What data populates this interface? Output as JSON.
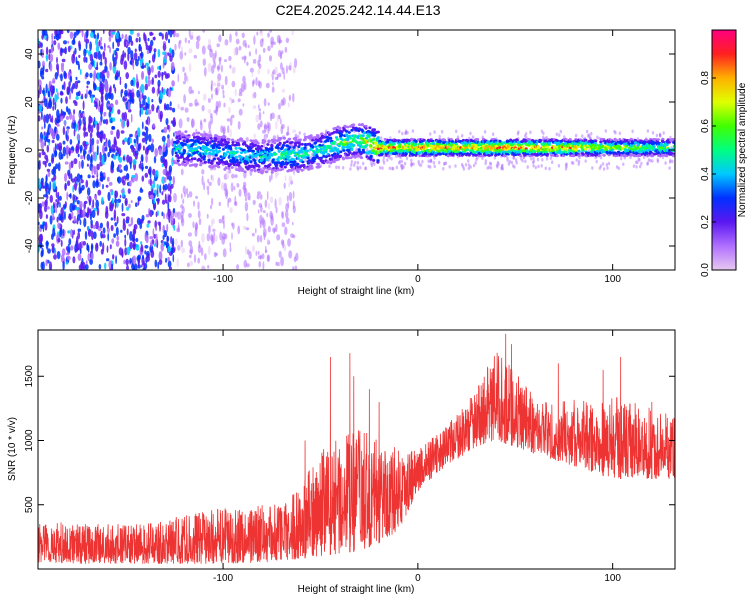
{
  "figure_title": "C2E4.2025.242.14.44.E13",
  "colors": {
    "snr_line": "#ee3333",
    "colorbar_stops": [
      "#e8c8f0",
      "#b070ff",
      "#5a18f0",
      "#0030ff",
      "#00c8ff",
      "#00ff80",
      "#40ff00",
      "#e0ff00",
      "#ffb000",
      "#ff2020",
      "#ff0080"
    ]
  },
  "chart_data": [
    {
      "type": "heatmap",
      "title": "",
      "xlabel": "Height of straight line (km)",
      "ylabel": "Frequency (Hz)",
      "xlim": [
        -195,
        132
      ],
      "ylim": [
        -50,
        50
      ],
      "xticks": [
        -100,
        0,
        100
      ],
      "yticks": [
        -40,
        -20,
        0,
        20,
        40
      ],
      "xtick_labels": [
        "-100",
        "0",
        "100"
      ],
      "ytick_labels": [
        "-40",
        "-20",
        "0",
        "20",
        "40"
      ],
      "colorbar": {
        "label": "Normalized spectral amplitude",
        "range": [
          0,
          1
        ],
        "ticks": [
          0.0,
          0.2,
          0.4,
          0.6,
          0.8
        ],
        "tick_labels": [
          "0.0",
          "0.2",
          "0.4",
          "0.6",
          "0.8"
        ]
      },
      "signal_trace": {
        "x": [
          -125,
          -110,
          -100,
          -90,
          -80,
          -70,
          -60,
          -50,
          -40,
          -30,
          -25,
          -20,
          -10,
          0,
          20,
          40,
          60,
          80,
          100,
          120,
          132
        ],
        "frequency": [
          1,
          0,
          -1,
          -2,
          -3,
          -2,
          -2,
          0,
          3,
          4,
          3,
          1,
          1,
          1,
          1,
          1,
          1,
          1,
          1,
          1,
          1
        ],
        "amplitude": [
          0.45,
          0.5,
          0.45,
          0.5,
          0.45,
          0.55,
          0.55,
          0.5,
          0.6,
          0.6,
          0.8,
          0.9,
          0.85,
          0.9,
          0.85,
          0.9,
          0.9,
          0.85,
          0.7,
          0.65,
          0.6
        ]
      },
      "noise_region": {
        "x_start": -195,
        "x_end": -62,
        "dense_until": -125
      }
    },
    {
      "type": "line",
      "title": "",
      "xlabel": "Height of straight line (km)",
      "ylabel": "SNR (10 * v/v)",
      "xlim": [
        -195,
        132
      ],
      "ylim": [
        0,
        1860
      ],
      "xticks": [
        -100,
        0,
        100
      ],
      "yticks": [
        500,
        1000,
        1500
      ],
      "xtick_labels": [
        "-100",
        "0",
        "100"
      ],
      "ytick_labels": [
        "500",
        "1000",
        "1500"
      ],
      "series": [
        {
          "name": "SNR",
          "envelope_x": [
            -195,
            -170,
            -140,
            -120,
            -100,
            -80,
            -70,
            -60,
            -50,
            -40,
            -30,
            -20,
            -10,
            0,
            10,
            20,
            30,
            40,
            50,
            60,
            70,
            80,
            90,
            100,
            110,
            120,
            132
          ],
          "envelope_low": [
            50,
            40,
            40,
            40,
            40,
            50,
            60,
            80,
            100,
            120,
            140,
            200,
            300,
            600,
            750,
            850,
            950,
            1000,
            950,
            900,
            850,
            800,
            750,
            700,
            700,
            700,
            700
          ],
          "envelope_high": [
            380,
            350,
            350,
            420,
            480,
            500,
            520,
            650,
            950,
            1050,
            1100,
            1000,
            950,
            950,
            1050,
            1200,
            1400,
            1700,
            1550,
            1350,
            1300,
            1320,
            1300,
            1350,
            1300,
            1250,
            1200
          ],
          "spikes_x": [
            -58,
            -45,
            -35,
            -33,
            -25,
            -20,
            45,
            48,
            72,
            95,
            104,
            120
          ],
          "spikes_y": [
            1000,
            1650,
            1680,
            1500,
            1400,
            1300,
            1830,
            1750,
            1600,
            1550,
            1650,
            1300
          ]
        }
      ]
    }
  ]
}
